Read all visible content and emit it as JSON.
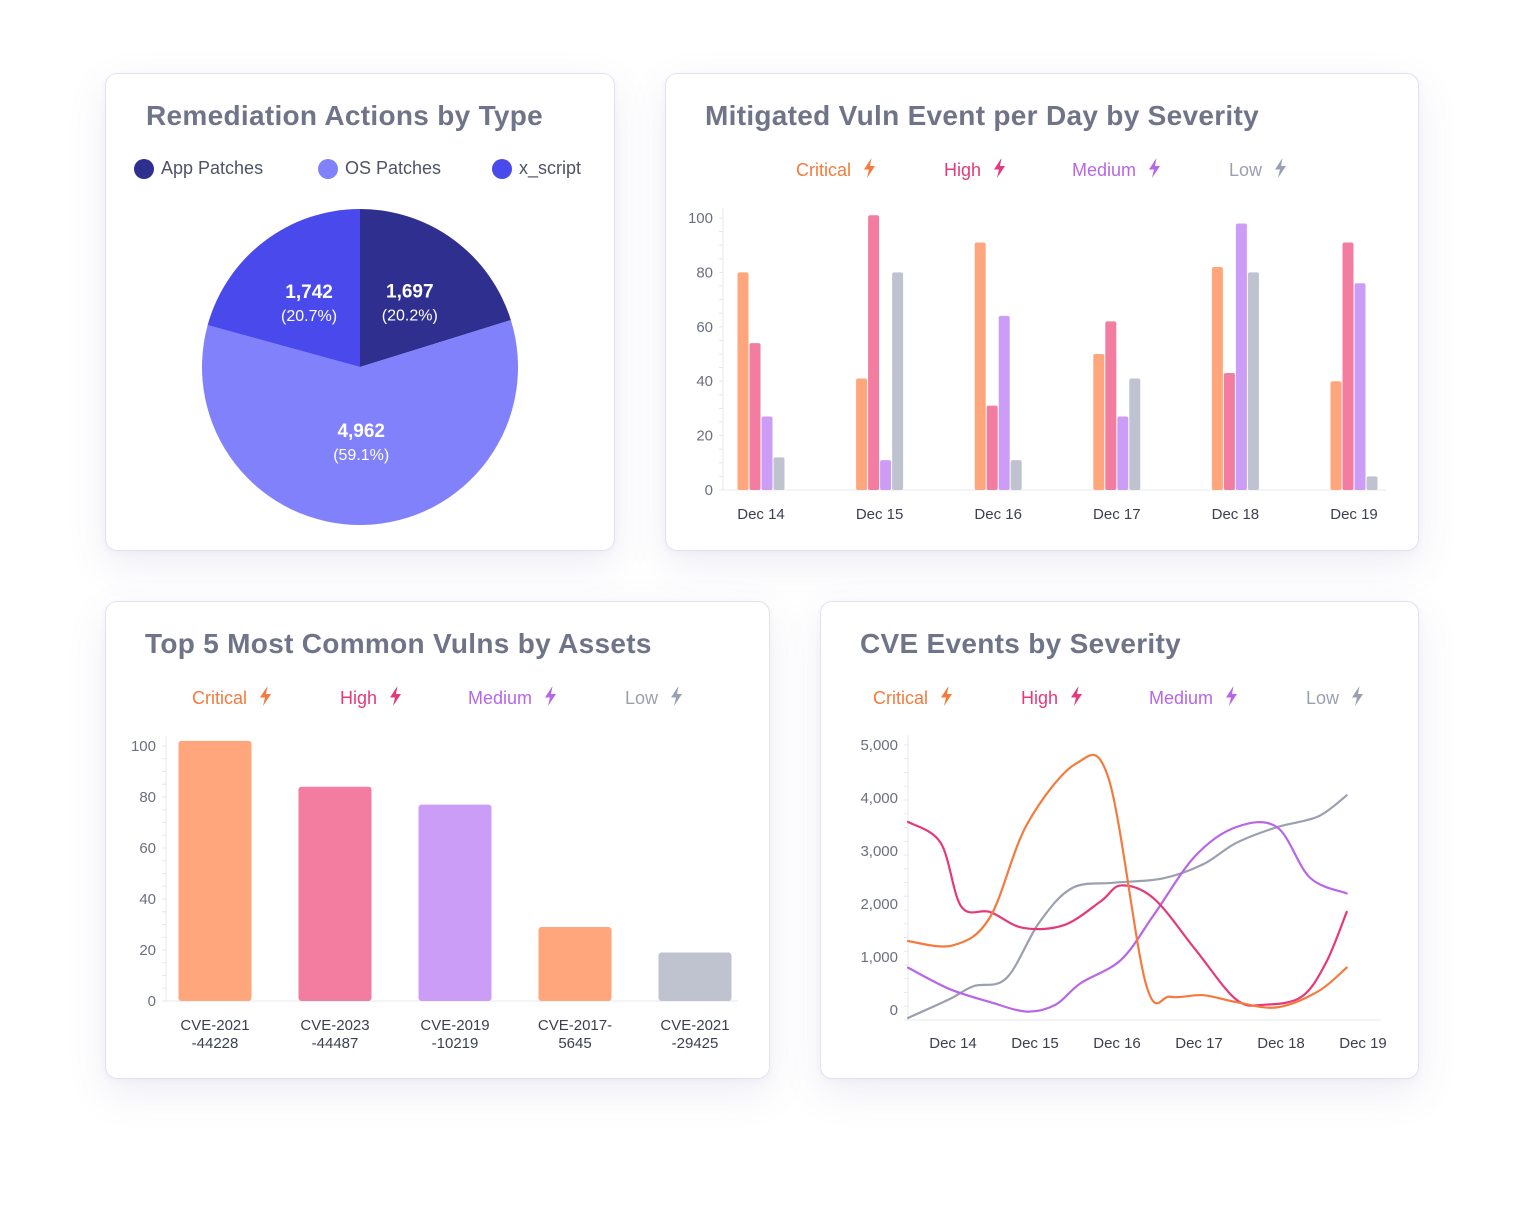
{
  "severity_colors": {
    "critical": "#f47a3d",
    "high": "#e4397a",
    "medium": "#b766e8",
    "low": "#9aa0b0"
  },
  "severity_bar_colors": {
    "critical": "#ffa67c",
    "high": "#f27da0",
    "medium": "#cb9df6",
    "low": "#bfc3cf"
  },
  "pie_card": {
    "title": "Remediation Actions by Type",
    "legend": [
      {
        "label": "App Patches",
        "color": "#2f2f8f"
      },
      {
        "label": "OS Patches",
        "color": "#8181fb"
      },
      {
        "label": "x_script",
        "color": "#4a4aec"
      }
    ]
  },
  "bar_card": {
    "title": "Mitigated Vuln Event per Day by Severity",
    "legend": [
      {
        "label": "Critical",
        "icon": "bolt-icon",
        "key": "critical"
      },
      {
        "label": "High",
        "icon": "bolt-icon",
        "key": "high"
      },
      {
        "label": "Medium",
        "icon": "bolt-icon",
        "key": "medium"
      },
      {
        "label": "Low",
        "icon": "bolt-icon",
        "key": "low"
      }
    ]
  },
  "top5_card": {
    "title": "Top 5 Most Common Vulns by Assets",
    "legend": [
      {
        "label": "Critical",
        "icon": "bolt-icon",
        "key": "critical"
      },
      {
        "label": "High",
        "icon": "bolt-icon",
        "key": "high"
      },
      {
        "label": "Medium",
        "icon": "bolt-icon",
        "key": "medium"
      },
      {
        "label": "Low",
        "icon": "bolt-icon",
        "key": "low"
      }
    ]
  },
  "line_card": {
    "title": "CVE Events by Severity",
    "legend": [
      {
        "label": "Critical",
        "icon": "bolt-icon",
        "key": "critical"
      },
      {
        "label": "High",
        "icon": "bolt-icon",
        "key": "high"
      },
      {
        "label": "Medium",
        "icon": "bolt-icon",
        "key": "medium"
      },
      {
        "label": "Low",
        "icon": "bolt-icon",
        "key": "low"
      }
    ]
  },
  "chart_data": [
    {
      "type": "pie",
      "title": "Remediation Actions by Type",
      "slices": [
        {
          "label": "App Patches",
          "value": 1697,
          "value_label": "1,697",
          "percent_label": "(20.2%)",
          "color": "#2f2f8f"
        },
        {
          "label": "OS Patches",
          "value": 4962,
          "value_label": "4,962",
          "percent_label": "(59.1%)",
          "color": "#8181fb"
        },
        {
          "label": "x_script",
          "value": 1742,
          "value_label": "1,742",
          "percent_label": "(20.7%)",
          "color": "#4a4aec"
        }
      ]
    },
    {
      "type": "bar",
      "title": "Mitigated Vuln Event per Day by Severity",
      "categories": [
        "Dec 14",
        "Dec 15",
        "Dec 16",
        "Dec 17",
        "Dec 18",
        "Dec 19"
      ],
      "series": [
        {
          "name": "Critical",
          "key": "critical",
          "values": [
            80,
            41,
            91,
            50,
            82,
            40
          ]
        },
        {
          "name": "High",
          "key": "high",
          "values": [
            54,
            101,
            31,
            62,
            43,
            91
          ]
        },
        {
          "name": "Medium",
          "key": "medium",
          "values": [
            27,
            11,
            64,
            27,
            98,
            76
          ]
        },
        {
          "name": "Low",
          "key": "low",
          "values": [
            12,
            80,
            11,
            41,
            80,
            5
          ]
        }
      ],
      "ylim": [
        0,
        100
      ],
      "yticks": [
        0,
        20,
        40,
        60,
        80,
        100
      ]
    },
    {
      "type": "bar",
      "title": "Top 5 Most Common Vulns by Assets",
      "categories": [
        [
          "CVE-2021",
          "-44228"
        ],
        [
          "CVE-2023",
          "-44487"
        ],
        [
          "CVE-2019",
          "-10219"
        ],
        [
          "CVE-2017-",
          "5645"
        ],
        [
          "CVE-2021",
          "-29425"
        ]
      ],
      "values": [
        102,
        84,
        77,
        29,
        19
      ],
      "severity": [
        "critical",
        "high",
        "medium",
        "critical",
        "low"
      ],
      "ylim": [
        0,
        100
      ],
      "yticks": [
        0,
        20,
        40,
        60,
        80,
        100
      ]
    },
    {
      "type": "line",
      "title": "CVE Events by Severity",
      "categories": [
        "Dec 14",
        "Dec 15",
        "Dec 16",
        "Dec 17",
        "Dec 18",
        "Dec 19"
      ],
      "x_range": [
        0,
        6
      ],
      "ylim": [
        0,
        5000
      ],
      "yticks": [
        0,
        1000,
        2000,
        3000,
        4000,
        5000
      ],
      "ytick_labels": [
        "0",
        "1,000",
        "2,000",
        "3,000",
        "4,000",
        "5,000"
      ],
      "series": [
        {
          "name": "Critical",
          "key": "critical",
          "points": [
            [
              0,
              1300
            ],
            [
              0.55,
              1220
            ],
            [
              1.0,
              1750
            ],
            [
              1.45,
              3500
            ],
            [
              2.05,
              4650
            ],
            [
              2.45,
              4350
            ],
            [
              2.9,
              500
            ],
            [
              3.2,
              250
            ],
            [
              3.6,
              280
            ],
            [
              4.0,
              150
            ],
            [
              4.5,
              50
            ],
            [
              5.0,
              350
            ],
            [
              5.35,
              800
            ]
          ]
        },
        {
          "name": "High",
          "key": "high",
          "points": [
            [
              0,
              3550
            ],
            [
              0.4,
              3150
            ],
            [
              0.65,
              1950
            ],
            [
              1.0,
              1850
            ],
            [
              1.4,
              1550
            ],
            [
              1.9,
              1600
            ],
            [
              2.35,
              2050
            ],
            [
              2.6,
              2350
            ],
            [
              3.0,
              2100
            ],
            [
              3.5,
              1150
            ],
            [
              4.0,
              200
            ],
            [
              4.35,
              100
            ],
            [
              4.8,
              250
            ],
            [
              5.1,
              900
            ],
            [
              5.35,
              1850
            ]
          ]
        },
        {
          "name": "Medium",
          "key": "medium",
          "points": [
            [
              0,
              800
            ],
            [
              0.5,
              400
            ],
            [
              1.0,
              150
            ],
            [
              1.45,
              -30
            ],
            [
              1.8,
              100
            ],
            [
              2.1,
              500
            ],
            [
              2.6,
              950
            ],
            [
              3.0,
              1800
            ],
            [
              3.5,
              2900
            ],
            [
              4.0,
              3450
            ],
            [
              4.5,
              3450
            ],
            [
              4.9,
              2500
            ],
            [
              5.35,
              2200
            ]
          ]
        },
        {
          "name": "Low",
          "key": "low",
          "points": [
            [
              0,
              -150
            ],
            [
              0.5,
              200
            ],
            [
              0.8,
              450
            ],
            [
              1.2,
              600
            ],
            [
              1.6,
              1650
            ],
            [
              2.0,
              2300
            ],
            [
              2.5,
              2400
            ],
            [
              3.1,
              2480
            ],
            [
              3.6,
              2750
            ],
            [
              4.0,
              3150
            ],
            [
              4.5,
              3450
            ],
            [
              5.0,
              3650
            ],
            [
              5.35,
              4050
            ]
          ]
        }
      ]
    }
  ]
}
